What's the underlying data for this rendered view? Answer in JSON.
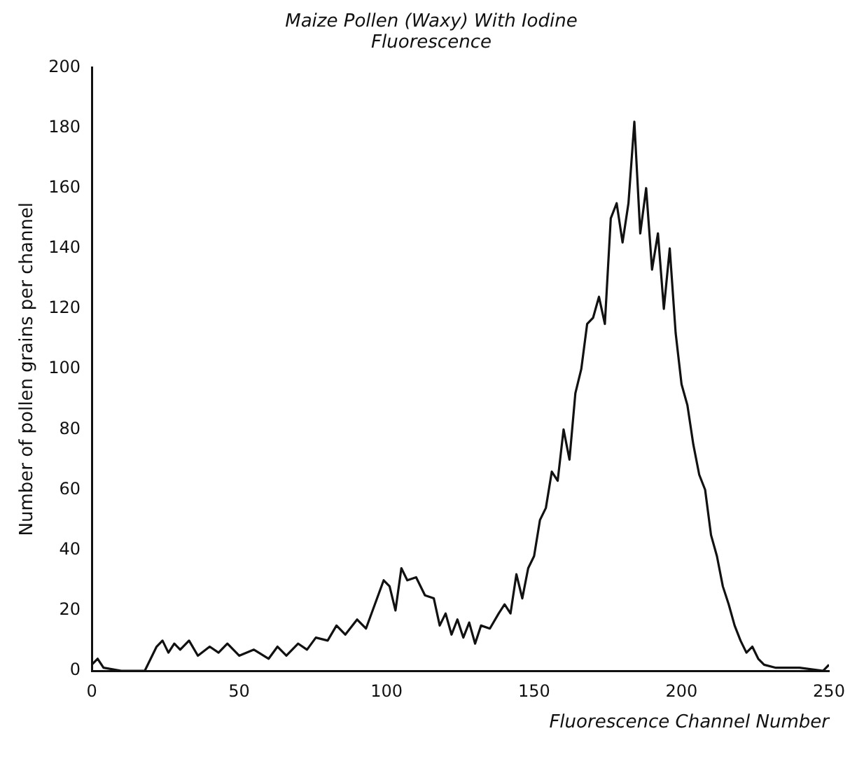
{
  "chart_data": {
    "type": "line",
    "title": "Maize Pollen (Waxy) With Iodine Fluorescence",
    "xlabel": "Fluorescence Channel Number",
    "ylabel": "Number of pollen grains per channel",
    "x": [
      0,
      2,
      4,
      10,
      18,
      22,
      24,
      26,
      28,
      30,
      33,
      36,
      40,
      43,
      46,
      50,
      55,
      60,
      63,
      66,
      70,
      73,
      76,
      80,
      83,
      86,
      90,
      93,
      96,
      99,
      101,
      103,
      105,
      107,
      110,
      113,
      116,
      118,
      120,
      122,
      124,
      126,
      128,
      130,
      132,
      135,
      138,
      140,
      142,
      144,
      146,
      148,
      150,
      152,
      154,
      156,
      158,
      160,
      162,
      164,
      166,
      168,
      170,
      172,
      174,
      176,
      178,
      180,
      182,
      184,
      186,
      188,
      190,
      192,
      194,
      196,
      198,
      200,
      202,
      204,
      206,
      208,
      210,
      212,
      214,
      216,
      218,
      220,
      222,
      224,
      226,
      228,
      232,
      240,
      248,
      250
    ],
    "series": [
      {
        "color": "#111111",
        "values": [
          2,
          4,
          1,
          0,
          0,
          8,
          10,
          6,
          9,
          7,
          10,
          5,
          8,
          6,
          9,
          5,
          7,
          4,
          8,
          5,
          9,
          7,
          11,
          10,
          15,
          12,
          17,
          14,
          22,
          30,
          28,
          20,
          34,
          30,
          31,
          25,
          24,
          15,
          19,
          12,
          17,
          11,
          16,
          9,
          15,
          14,
          19,
          22,
          19,
          32,
          24,
          34,
          38,
          50,
          54,
          66,
          63,
          80,
          70,
          92,
          100,
          115,
          117,
          124,
          115,
          150,
          155,
          142,
          155,
          182,
          145,
          160,
          133,
          145,
          120,
          140,
          112,
          95,
          88,
          75,
          65,
          60,
          45,
          38,
          28,
          22,
          15,
          10,
          6,
          8,
          4,
          2,
          1,
          1,
          0,
          2
        ]
      }
    ],
    "xlim": [
      0,
      250
    ],
    "ylim": [
      0,
      200
    ],
    "xticks": [
      0,
      50,
      100,
      150,
      200,
      250
    ],
    "yticks": [
      0,
      20,
      40,
      60,
      80,
      100,
      120,
      140,
      160,
      180,
      200
    ],
    "grid": false,
    "legend": false,
    "marker": "none",
    "line_style": "solid"
  }
}
